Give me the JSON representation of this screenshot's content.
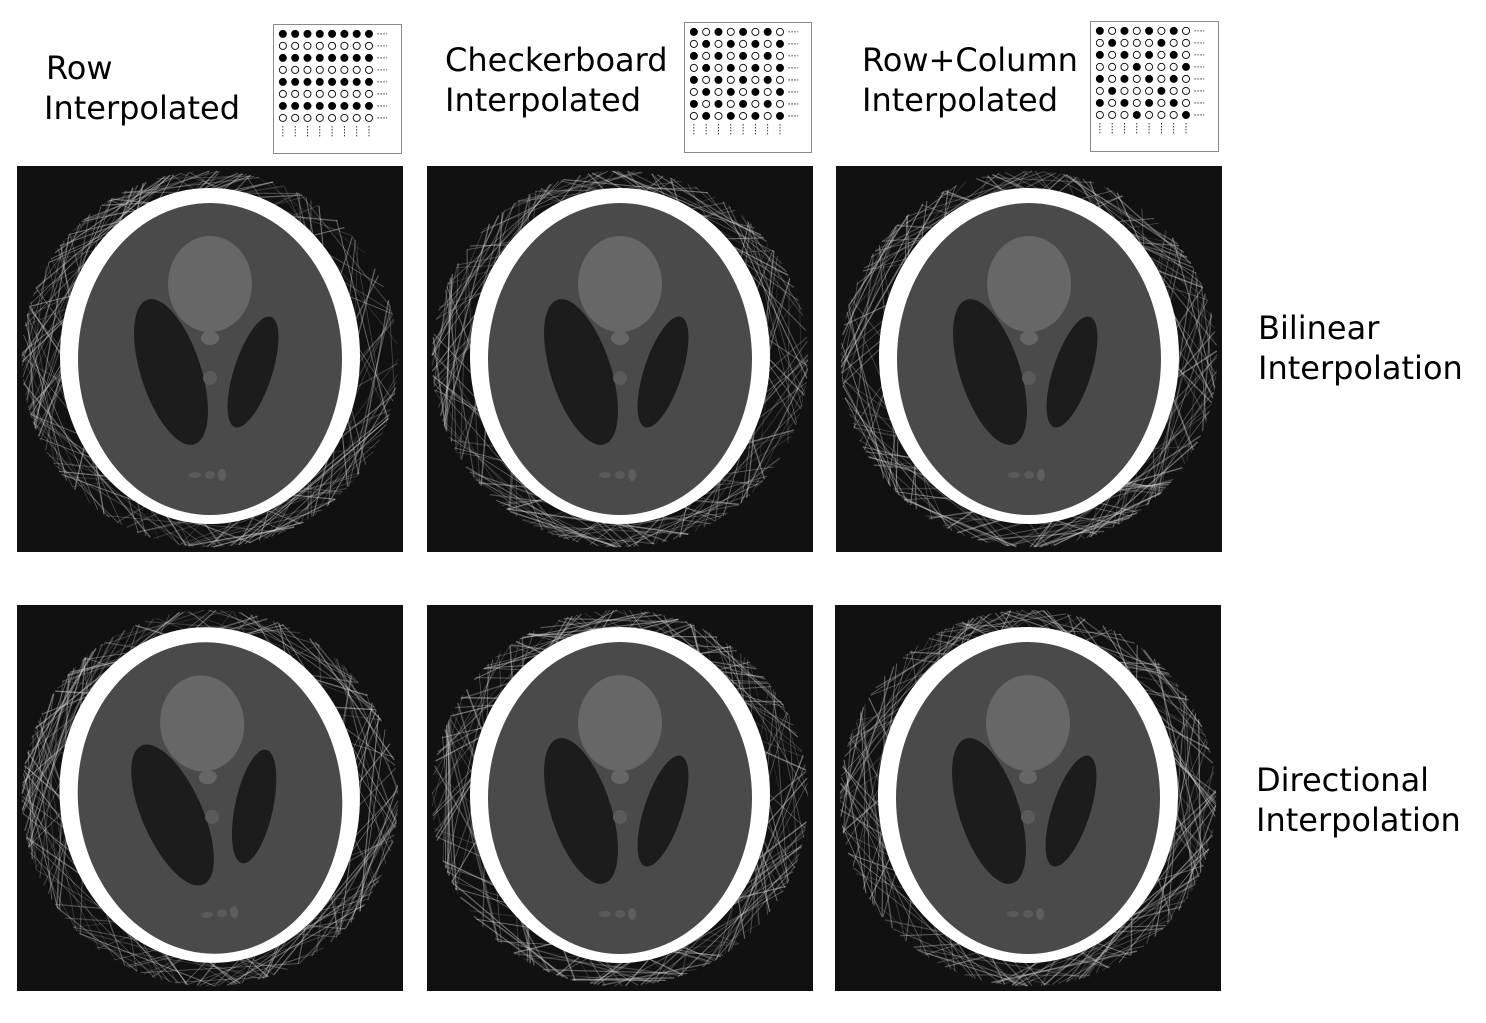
{
  "columns": [
    {
      "line1": "Row",
      "line2": "Interpolated",
      "pattern": "row"
    },
    {
      "line1": "Checkerboard",
      "line2": "Interpolated",
      "pattern": "checker"
    },
    {
      "line1": "Row+Column",
      "line2": "Interpolated",
      "pattern": "rowcol"
    }
  ],
  "rows": [
    {
      "line1": "Bilinear",
      "line2": "Interpolation"
    },
    {
      "line1": "Directional",
      "line2": "Interpolation"
    }
  ],
  "phantom": {
    "background": "#111111",
    "skull": "#ffffff",
    "brain": "#4a4a4a",
    "dark_ellipses": "#1c1c1c",
    "top_circle": "#676767",
    "small_features": "#5a5a5a"
  }
}
